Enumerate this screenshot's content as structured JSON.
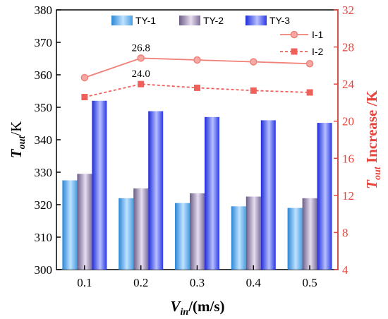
{
  "chart_data": {
    "type": "bar",
    "categories": [
      "0.1",
      "0.2",
      "0.3",
      "0.4",
      "0.5"
    ],
    "xlabel_main": "V",
    "xlabel_sub": "in",
    "xlabel_rest": "/(m/s)",
    "ylabel_main": "T",
    "ylabel_sub": "out",
    "ylabel_rest": "/K",
    "ylim": [
      300,
      380
    ],
    "yticks": [
      300,
      310,
      320,
      330,
      340,
      350,
      360,
      370,
      380
    ],
    "y2label_main": "T",
    "y2label_sub": "out",
    "y2label_rest": " Increase /K",
    "y2lim": [
      4,
      32
    ],
    "y2ticks": [
      4,
      8,
      12,
      16,
      20,
      24,
      28,
      32
    ],
    "series": [
      {
        "name": "TY-1",
        "values": [
          327.5,
          322.0,
          320.5,
          319.5,
          319.0
        ],
        "color": "#5aa9e6"
      },
      {
        "name": "TY-2",
        "values": [
          329.5,
          325.0,
          323.5,
          322.5,
          322.0
        ],
        "color": "#8e7fa6"
      },
      {
        "name": "TY-3",
        "values": [
          352.0,
          348.8,
          347.0,
          346.0,
          345.2
        ],
        "color": "#2e3fe0"
      }
    ],
    "lines": [
      {
        "name": "I-1",
        "values": [
          24.7,
          26.8,
          26.6,
          26.4,
          26.2
        ],
        "color": "#f08078",
        "dash": false,
        "marker": "circle"
      },
      {
        "name": "I-2",
        "values": [
          22.6,
          24.0,
          23.6,
          23.3,
          23.1
        ],
        "color": "#f0605a",
        "dash": true,
        "marker": "square"
      }
    ],
    "annotations": [
      {
        "text": "26.8",
        "series": "I-1",
        "index": 1
      },
      {
        "text": "24.0",
        "series": "I-2",
        "index": 1
      }
    ],
    "grid": false,
    "legend": "top"
  }
}
